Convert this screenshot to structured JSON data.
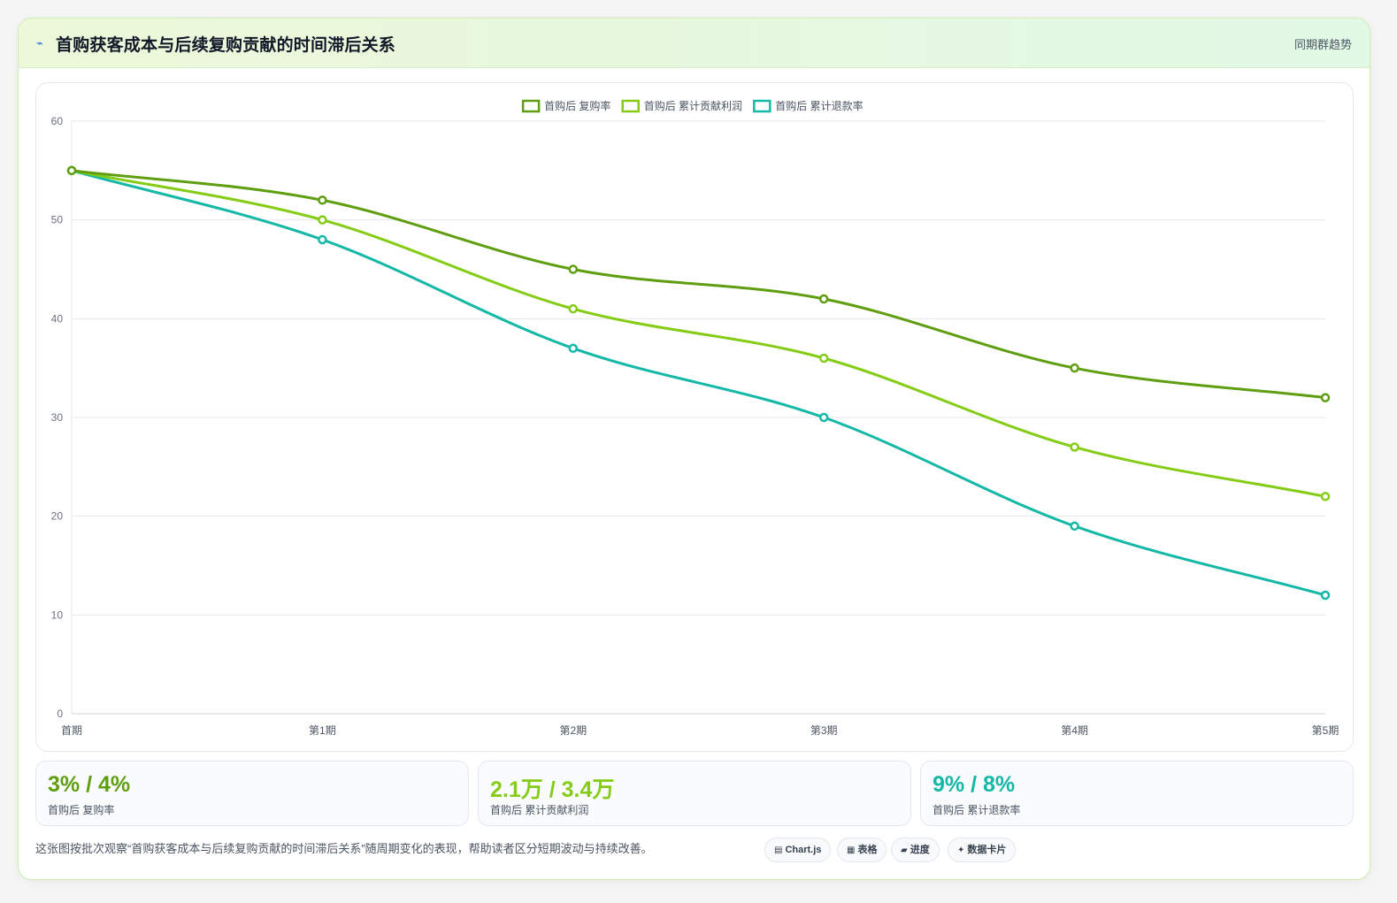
{
  "header": {
    "icon": "lightning-icon",
    "title": "首购获客成本与后续复购贡献的时间滞后关系",
    "tag": "同期群趋势"
  },
  "chart_data": {
    "type": "line",
    "title": "",
    "xlabel": "",
    "ylabel": "",
    "categories": [
      "首期",
      "第1期",
      "第2期",
      "第3期",
      "第4期",
      "第5期"
    ],
    "ylim": [
      0,
      60
    ],
    "yticks": [
      0,
      10,
      20,
      30,
      40,
      50,
      60
    ],
    "grid": true,
    "legend_position": "top",
    "series": [
      {
        "name": "首购后 复购率",
        "color": "#5f9e10",
        "values": [
          55,
          52,
          45,
          42,
          35,
          32
        ]
      },
      {
        "name": "首购后 累计贡献利润",
        "color": "#84cc16",
        "values": [
          55,
          50,
          41,
          36,
          27,
          22
        ]
      },
      {
        "name": "首购后 累计退款率",
        "color": "#14b8a6",
        "values": [
          55,
          48,
          37,
          30,
          19,
          12
        ]
      }
    ]
  },
  "stats": [
    {
      "value": "3% / 4%",
      "label": "首购后 复购率",
      "color": "#5f9e10"
    },
    {
      "value": "2.1万 / 3.4万",
      "label": "首购后 累计贡献利润",
      "color": "#84cc16"
    },
    {
      "value": "9% / 8%",
      "label": "首购后 累计退款率",
      "color": "#14b8a6"
    }
  ],
  "footnote": "这张图按批次观察“首购获客成本与后续复购贡献的时间滞后关系”随周期变化的表现，帮助读者区分短期波动与持续改善。",
  "pills": [
    {
      "icon": "chart-icon",
      "glyph": "▤",
      "label": "Chart.js"
    },
    {
      "icon": "table-icon",
      "glyph": "▦",
      "label": "表格"
    },
    {
      "icon": "progress-icon",
      "glyph": "▰",
      "label": "进度"
    },
    {
      "icon": "sparkle-icon",
      "glyph": "✦",
      "label": "数据卡片"
    }
  ]
}
